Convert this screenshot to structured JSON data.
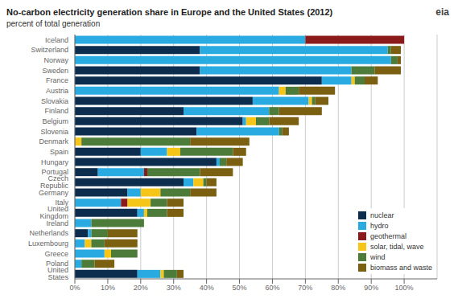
{
  "chart_data": {
    "type": "bar",
    "orientation": "horizontal",
    "stacked": true,
    "title": "No-carbon electricity generation share in Europe and the United States (2012)",
    "subtitle": "percent of total generation",
    "annotation": "eia",
    "categories": [
      "Iceland",
      "Switzerland",
      "Norway",
      "Sweden",
      "France",
      "Austria",
      "Slovakia",
      "Finland",
      "Belgium",
      "Slovenia",
      "Denmark",
      "Spain",
      "Hungary",
      "Portugal",
      "Czech Republic",
      "Germany",
      "Italy",
      "United Kingdom",
      "Ireland",
      "Netherlands",
      "Luxembourg",
      "Greece",
      "Poland",
      "United States"
    ],
    "series": [
      {
        "name": "nuclear",
        "color": "#0d2d4e",
        "values": [
          0,
          38,
          0,
          38,
          75,
          0,
          54,
          33,
          51,
          37,
          0,
          20,
          43,
          7,
          33,
          16,
          0,
          19,
          0,
          4,
          0,
          0,
          0,
          19
        ]
      },
      {
        "name": "hydro",
        "color": "#29aae1",
        "values": [
          70,
          57,
          96,
          46,
          9,
          62,
          17,
          26,
          1,
          25,
          0,
          8,
          1,
          14,
          3,
          4,
          14,
          2,
          5,
          1,
          3,
          9,
          2,
          7
        ]
      },
      {
        "name": "geothermal",
        "color": "#8b1a1a",
        "values": [
          30,
          0,
          0,
          0,
          0,
          0,
          0,
          0,
          0,
          0,
          0,
          0,
          0,
          1,
          0,
          0,
          2,
          0,
          0,
          0,
          0,
          0,
          0,
          0
        ]
      },
      {
        "name": "solar, tidal, wave",
        "color": "#f5c518",
        "values": [
          0,
          0,
          0,
          0,
          1,
          2,
          1,
          0,
          3,
          0,
          2,
          4,
          0,
          0,
          3,
          6,
          7,
          1,
          0,
          0,
          2,
          2,
          0,
          1
        ]
      },
      {
        "name": "wind",
        "color": "#4d7c3a",
        "values": [
          0,
          1,
          2,
          7,
          3,
          4,
          1,
          3,
          4,
          1,
          33,
          16,
          2,
          16,
          1,
          9,
          5,
          6,
          16,
          5,
          4,
          8,
          4,
          4
        ]
      },
      {
        "name": "biomass and waste",
        "color": "#7a6010",
        "values": [
          0,
          3,
          1,
          8,
          4,
          11,
          4,
          13,
          9,
          2,
          18,
          4,
          5,
          10,
          3,
          8,
          5,
          5,
          0,
          9,
          10,
          0,
          6,
          2
        ]
      }
    ],
    "xlim": [
      0,
      110
    ],
    "xticks": [
      {
        "value": 0,
        "label": "0%"
      },
      {
        "value": 10,
        "label": "10%"
      },
      {
        "value": 20,
        "label": "20%"
      },
      {
        "value": 30,
        "label": "30%"
      },
      {
        "value": 40,
        "label": "40%"
      },
      {
        "value": 50,
        "label": "50%"
      },
      {
        "value": 60,
        "label": "60%"
      },
      {
        "value": 70,
        "label": "70%"
      },
      {
        "value": 80,
        "label": "80%"
      },
      {
        "value": 90,
        "label": "90%"
      },
      {
        "value": 100,
        "label": "100%"
      }
    ],
    "grid": "x",
    "legend": "lower right"
  }
}
